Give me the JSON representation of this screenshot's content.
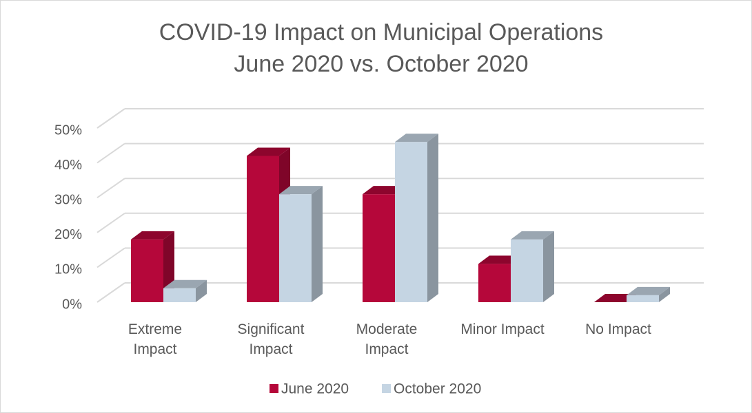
{
  "chart_data": {
    "type": "bar3d",
    "title": "COVID-19 Impact on Municipal Operations",
    "subtitle": "June 2020 vs. October 2020",
    "categories": [
      "Extreme\nImpact",
      "Significant\nImpact",
      "Moderate\nImpact",
      "Minor Impact",
      "No Impact"
    ],
    "series": [
      {
        "name": "June 2020",
        "color": "#b5073a",
        "values": [
          18,
          42,
          31,
          11,
          0
        ]
      },
      {
        "name": "October 2020",
        "color": "#c5d5e3",
        "values": [
          4,
          31,
          46,
          18,
          2
        ]
      }
    ],
    "ylim": [
      0,
      50
    ],
    "yticks": [
      {
        "value": 0,
        "label": "0%"
      },
      {
        "value": 10,
        "label": "10%"
      },
      {
        "value": 20,
        "label": "20%"
      },
      {
        "value": 30,
        "label": "30%"
      },
      {
        "value": 40,
        "label": "40%"
      },
      {
        "value": 50,
        "label": "50%"
      }
    ],
    "grid": true,
    "legend": "bottom"
  }
}
